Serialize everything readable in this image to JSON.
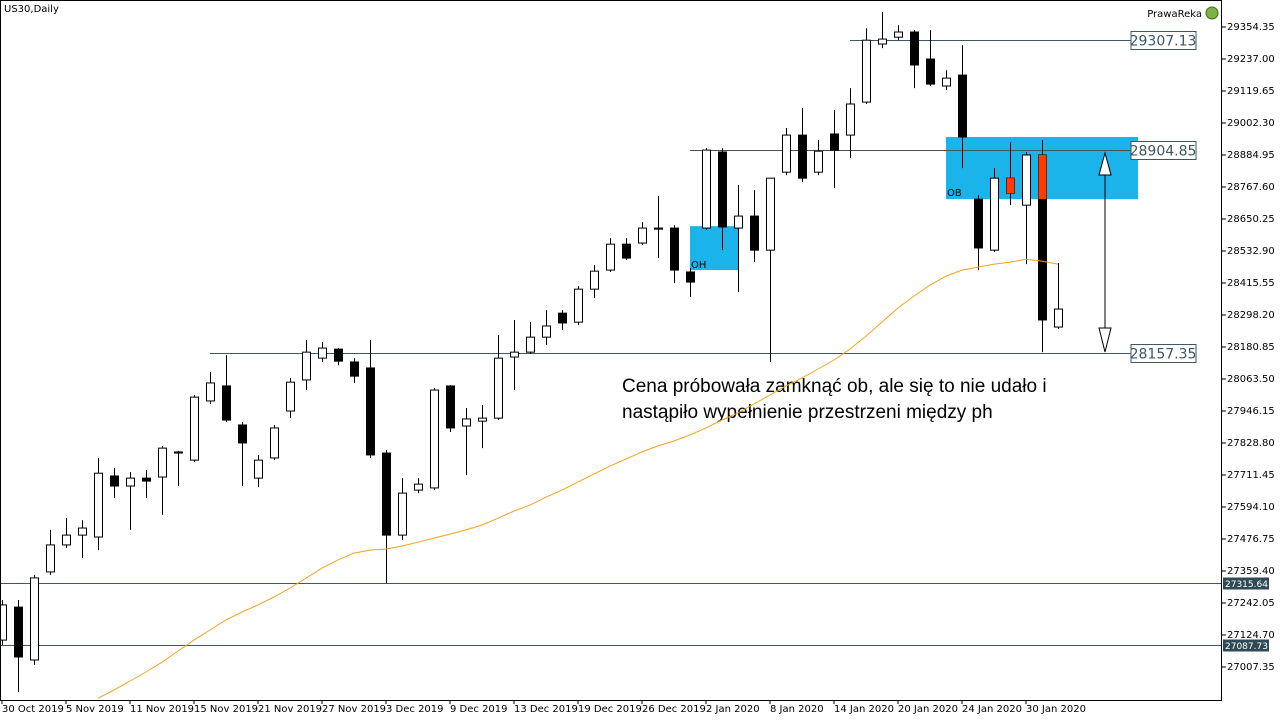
{
  "chart_data": {
    "type": "candlestick",
    "title": "US30,Daily",
    "brand": "PrawaReka",
    "categories": [
      "30 Oct 2019",
      null,
      null,
      null,
      "5 Nov 2019",
      null,
      null,
      null,
      "11 Nov 2019",
      null,
      null,
      null,
      "15 Nov 2019",
      null,
      null,
      null,
      "21 Nov 2019",
      null,
      null,
      null,
      "27 Nov 2019",
      null,
      null,
      null,
      "3 Dec 2019",
      null,
      null,
      null,
      "9 Dec 2019",
      null,
      null,
      null,
      "13 Dec 2019",
      null,
      null,
      null,
      "19 Dec 2019",
      null,
      null,
      null,
      "26 Dec 2019",
      null,
      null,
      null,
      "2 Jan 2020",
      null,
      null,
      null,
      "8 Jan 2020",
      null,
      null,
      null,
      "14 Jan 2020",
      null,
      null,
      null,
      "20 Jan 2020",
      null,
      null,
      null,
      "24 Jan 2020",
      null,
      null,
      null,
      "30 Jan 2020",
      null,
      null
    ],
    "open": [
      27106,
      27227,
      27033,
      27356,
      27455,
      27491,
      27484,
      27708,
      27671,
      27700,
      27704,
      27792,
      27766,
      27983,
      28038,
      27895,
      27700,
      27774,
      27946,
      28060,
      28140,
      28173,
      28126,
      28104,
      27792,
      27491,
      27656,
      27664,
      28038,
      27891,
      27909,
      27920,
      28144,
      28162,
      28217,
      28305,
      28272,
      28393,
      28463,
      28558,
      28562,
      28613,
      28617,
      28456,
      28617,
      28896,
      28617,
      28661,
      28536,
      28822,
      28958,
      28822,
      28962,
      28958,
      29079,
      29292,
      29317,
      29336,
      29237,
      29138,
      29178,
      28723,
      28536,
      28800,
      28701,
      28885,
      28254
    ],
    "high": [
      27253,
      27253,
      27345,
      27510,
      27554,
      27546,
      27774,
      27737,
      27722,
      27730,
      27818,
      27800,
      28005,
      28089,
      28151,
      27906,
      27785,
      27895,
      28067,
      28206,
      28199,
      28177,
      28140,
      28206,
      27803,
      27700,
      27700,
      28030,
      28041,
      27957,
      27968,
      28225,
      28280,
      28272,
      28316,
      28316,
      28404,
      28481,
      28580,
      28580,
      28639,
      28734,
      28628,
      28470,
      28910,
      28910,
      28775,
      28756,
      28800,
      28984,
      29057,
      28940,
      29050,
      29130,
      29350,
      29409,
      29361,
      29343,
      29343,
      29196,
      29288,
      28738,
      28837,
      28932,
      28896,
      28940,
      28489
    ],
    "low": [
      27088,
      26916,
      27015,
      27345,
      27444,
      27407,
      27436,
      27627,
      27510,
      27627,
      27565,
      27671,
      27759,
      27972,
      27906,
      27671,
      27667,
      27766,
      27920,
      28023,
      28126,
      28114,
      28049,
      27774,
      27315,
      27473,
      27645,
      27656,
      27869,
      27711,
      27810,
      27913,
      28023,
      28155,
      28188,
      28243,
      28261,
      28360,
      28456,
      28500,
      28555,
      28507,
      28415,
      28364,
      28610,
      28536,
      28382,
      28493,
      28126,
      28811,
      28786,
      28811,
      28764,
      28874,
      29072,
      29277,
      29306,
      29130,
      29138,
      29123,
      28837,
      28463,
      28529,
      28701,
      28485,
      28162,
      28247
    ],
    "close": [
      27235,
      27044,
      27334,
      27455,
      27491,
      27517,
      27718,
      27671,
      27700,
      27689,
      27810,
      27796,
      27997,
      28049,
      27913,
      27829,
      27766,
      27884,
      28052,
      28162,
      28177,
      28129,
      28074,
      27785,
      27491,
      27645,
      27678,
      28023,
      27884,
      27917,
      27920,
      28140,
      28162,
      28217,
      28258,
      28269,
      28393,
      28459,
      28558,
      28507,
      28617,
      28617,
      28463,
      28419,
      28903,
      28621,
      28661,
      28536,
      28800,
      28958,
      28800,
      28899,
      28903,
      29072,
      29306,
      29310,
      29336,
      29215,
      29145,
      29167,
      28951,
      28544,
      28800,
      28745,
      28885,
      28280,
      28320
    ],
    "ma": {
      "color": "#f5a21b",
      "values": [
        null,
        null,
        null,
        null,
        null,
        null,
        26893,
        26923,
        26956,
        26989,
        27025,
        27066,
        27106,
        27143,
        27180,
        27209,
        27235,
        27264,
        27297,
        27333,
        27370,
        27400,
        27425,
        27436,
        27440,
        27451,
        27465,
        27480,
        27495,
        27510,
        27528,
        27553,
        27579,
        27601,
        27630,
        27656,
        27686,
        27715,
        27744,
        27770,
        27796,
        27818,
        27836,
        27858,
        27884,
        27913,
        27939,
        27972,
        28005,
        28038,
        28067,
        28100,
        28133,
        28173,
        28221,
        28272,
        28324,
        28368,
        28408,
        28441,
        28463,
        28474,
        28485,
        28492,
        28503,
        28496,
        28485
      ]
    },
    "ylim": [
      26886.3,
      29453.4
    ],
    "yticks": [
      29354.35,
      {
        "value": 29237,
        "label": "29237.00"
      },
      29119.65,
      {
        "value": 29002.3,
        "label": "29002.30"
      },
      28884.95,
      {
        "value": 28767.6,
        "label": "28767.60"
      },
      28650.25,
      {
        "value": 28532.9,
        "label": "28532.90"
      },
      28415.55,
      {
        "value": 28298.2,
        "label": "28298.20"
      },
      28180.85,
      {
        "value": 28063.5,
        "label": "28063.50"
      },
      27946.15,
      {
        "value": 27828.8,
        "label": "27828.80"
      },
      27711.45,
      {
        "value": 27594.1,
        "label": "27594.10"
      },
      27476.75,
      {
        "value": 27359.4,
        "label": "27359.40"
      },
      27242.05,
      {
        "value": 27124.7,
        "label": "27124.70"
      },
      27007.35
    ],
    "levels": [
      29307.13,
      28904.85,
      28157.35
    ],
    "price_marks": [
      27315.64,
      27087.73
    ],
    "zones": [
      {
        "label": "OB",
        "ylim": [
          28723,
          28951
        ]
      },
      {
        "label": "OH",
        "ylim": [
          28463,
          28624
        ]
      }
    ],
    "zone_color": "#1ab3ea",
    "highlight_color": "#ff3c00",
    "annotation": [
      "Cena próbowała zamknąć ob, ale się to nie udało i",
      "nastąpiło wypełnienie przestrzeni między ph"
    ]
  }
}
